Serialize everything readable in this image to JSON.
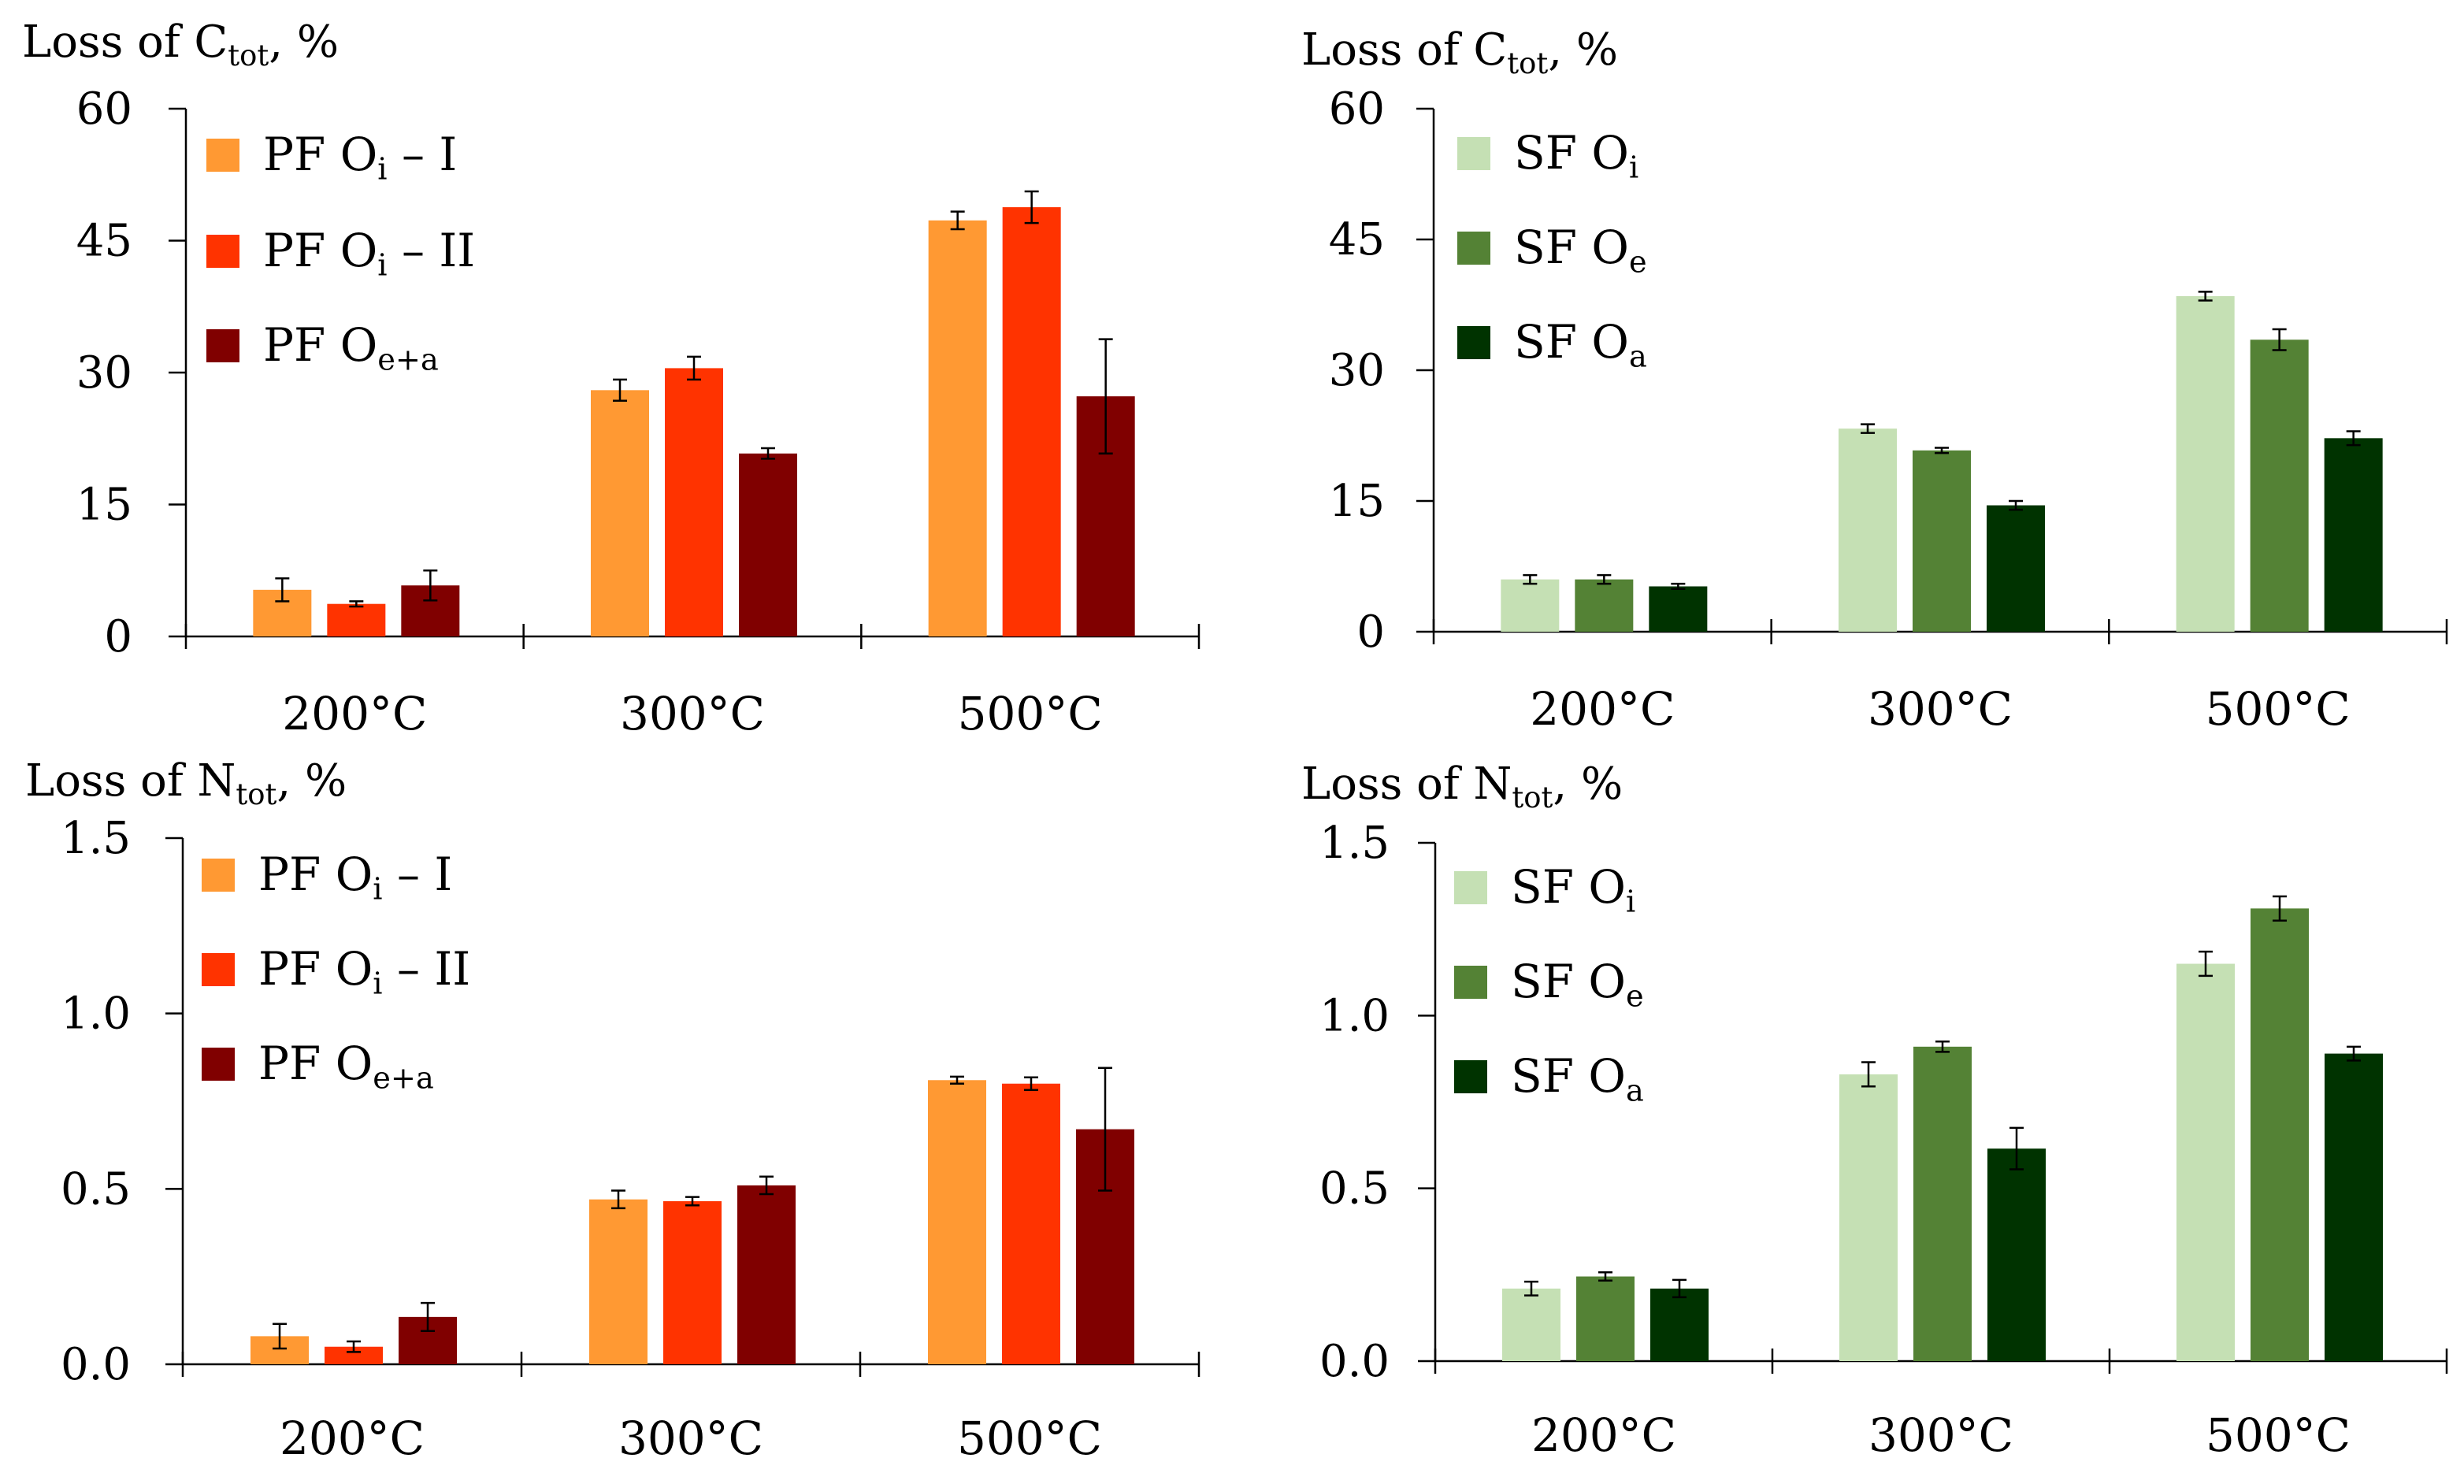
{
  "colors": {
    "pf": [
      "#FF9933",
      "#FF3300",
      "#800000"
    ],
    "sf": [
      "#C5E0B4",
      "#548235",
      "#003300"
    ],
    "axis": "#000000"
  },
  "chart_data": [
    {
      "id": "c-pf",
      "type": "bar",
      "title": {
        "prefix": "Loss of C",
        "sub": "tot",
        "suffix": ", %"
      },
      "categories": [
        "200°C",
        "300°C",
        "500°C"
      ],
      "ylim": [
        0,
        60
      ],
      "yticks": [
        "0",
        "15",
        "30",
        "45",
        "60"
      ],
      "palette": "pf",
      "series": [
        {
          "name": {
            "base": "PF O",
            "sub": "i",
            "suffix": " – I"
          },
          "values": [
            5.3,
            28.0,
            47.3
          ],
          "errors": [
            1.3,
            1.2,
            1.0
          ]
        },
        {
          "name": {
            "base": "PF O",
            "sub": "i",
            "suffix": " – II"
          },
          "values": [
            3.7,
            30.5,
            48.8
          ],
          "errors": [
            0.3,
            1.3,
            1.8
          ]
        },
        {
          "name": {
            "base": "PF O",
            "sub": "e+a",
            "suffix": ""
          },
          "values": [
            5.8,
            20.8,
            27.3
          ],
          "errors": [
            1.7,
            0.6,
            6.5
          ]
        }
      ]
    },
    {
      "id": "c-sf",
      "type": "bar",
      "title": {
        "prefix": "Loss of C",
        "sub": "tot",
        "suffix": ", %"
      },
      "categories": [
        "200°C",
        "300°C",
        "500°C"
      ],
      "ylim": [
        0,
        60
      ],
      "yticks": [
        "0",
        "15",
        "30",
        "45",
        "60"
      ],
      "palette": "sf",
      "series": [
        {
          "name": {
            "base": "SF O",
            "sub": "i",
            "suffix": ""
          },
          "values": [
            6.0,
            23.3,
            38.5
          ],
          "errors": [
            0.5,
            0.5,
            0.5
          ]
        },
        {
          "name": {
            "base": "SF O",
            "sub": "e",
            "suffix": ""
          },
          "values": [
            6.0,
            20.8,
            33.5
          ],
          "errors": [
            0.5,
            0.3,
            1.2
          ]
        },
        {
          "name": {
            "base": "SF O",
            "sub": "a",
            "suffix": ""
          },
          "values": [
            5.2,
            14.5,
            22.2
          ],
          "errors": [
            0.3,
            0.5,
            0.8
          ]
        }
      ]
    },
    {
      "id": "n-pf",
      "type": "bar",
      "title": {
        "prefix": "Loss of N",
        "sub": "tot",
        "suffix": ", %"
      },
      "categories": [
        "200°C",
        "300°C",
        "500°C"
      ],
      "ylim": [
        0,
        1.5
      ],
      "yticks": [
        "0.0",
        "0.5",
        "1.0",
        "1.5"
      ],
      "palette": "pf",
      "series": [
        {
          "name": {
            "base": "PF O",
            "sub": "i",
            "suffix": " – I"
          },
          "values": [
            0.08,
            0.47,
            0.81
          ],
          "errors": [
            0.035,
            0.025,
            0.01
          ]
        },
        {
          "name": {
            "base": "PF O",
            "sub": "i",
            "suffix": " – II"
          },
          "values": [
            0.05,
            0.465,
            0.8
          ],
          "errors": [
            0.015,
            0.012,
            0.018
          ]
        },
        {
          "name": {
            "base": "PF O",
            "sub": "e+a",
            "suffix": ""
          },
          "values": [
            0.135,
            0.51,
            0.67
          ],
          "errors": [
            0.04,
            0.025,
            0.175
          ]
        }
      ]
    },
    {
      "id": "n-sf",
      "type": "bar",
      "title": {
        "prefix": "Loss of N",
        "sub": "tot",
        "suffix": ", %"
      },
      "categories": [
        "200°C",
        "300°C",
        "500°C"
      ],
      "ylim": [
        0,
        1.5
      ],
      "yticks": [
        "0.0",
        "0.5",
        "1.0",
        "1.5"
      ],
      "palette": "sf",
      "series": [
        {
          "name": {
            "base": "SF O",
            "sub": "i",
            "suffix": ""
          },
          "values": [
            0.21,
            0.83,
            1.15
          ],
          "errors": [
            0.02,
            0.035,
            0.035
          ]
        },
        {
          "name": {
            "base": "SF O",
            "sub": "e",
            "suffix": ""
          },
          "values": [
            0.245,
            0.91,
            1.31
          ],
          "errors": [
            0.012,
            0.015,
            0.035
          ]
        },
        {
          "name": {
            "base": "SF O",
            "sub": "a",
            "suffix": ""
          },
          "values": [
            0.21,
            0.615,
            0.89
          ],
          "errors": [
            0.025,
            0.06,
            0.02
          ]
        }
      ]
    }
  ]
}
